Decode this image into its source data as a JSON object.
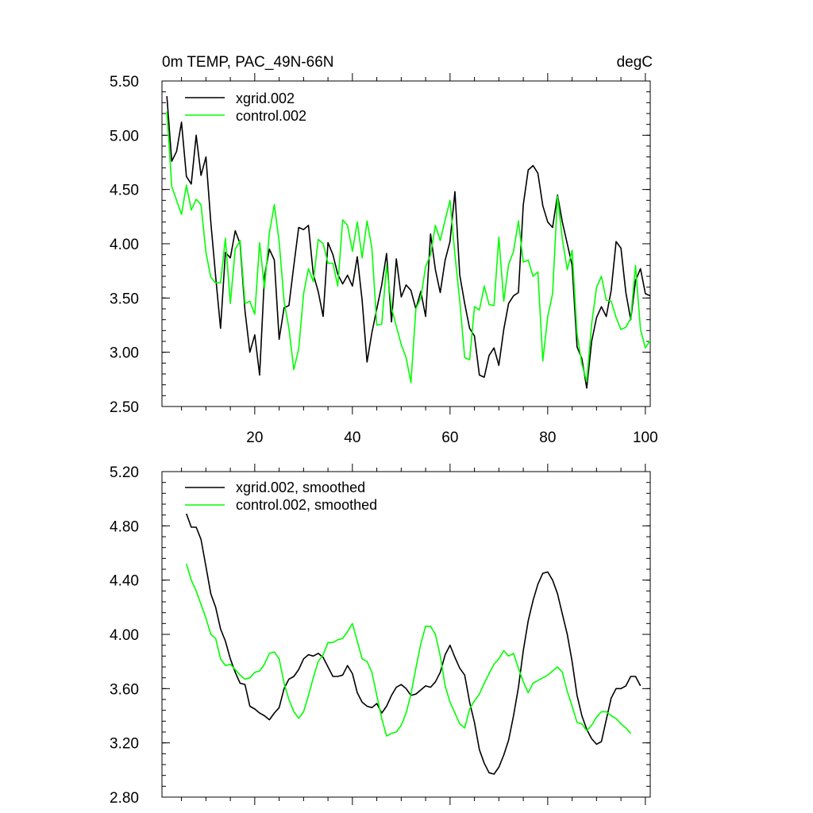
{
  "colors": {
    "xgrid": "#000000",
    "control": "#00ff00",
    "axis": "#000000",
    "background": "#ffffff"
  },
  "chart_data": [
    {
      "type": "line",
      "title": "0m TEMP, PAC_49N-66N",
      "units": "degC",
      "xlabel": "",
      "ylabel": "",
      "xlim": [
        1,
        101
      ],
      "ylim": [
        2.5,
        5.5
      ],
      "xticks": [
        20,
        40,
        60,
        80,
        100
      ],
      "xtick_labels": [
        "20",
        "40",
        "60",
        "80",
        "100"
      ],
      "yticks": [
        2.5,
        3.0,
        3.5,
        4.0,
        4.5,
        5.0,
        5.5
      ],
      "ytick_labels": [
        "2.50",
        "3.00",
        "3.50",
        "4.00",
        "4.50",
        "5.00",
        "5.50"
      ],
      "grid": false,
      "legend": "top-left",
      "x_start": 2,
      "series": [
        {
          "name": "xgrid.002",
          "color": "#000000",
          "values": [
            5.36,
            4.76,
            4.85,
            5.12,
            4.62,
            4.55,
            5.0,
            4.63,
            4.8,
            4.2,
            3.7,
            3.22,
            3.92,
            3.87,
            4.12,
            4.0,
            3.38,
            3.0,
            3.16,
            2.79,
            3.7,
            3.95,
            3.85,
            3.12,
            3.41,
            3.43,
            3.8,
            4.15,
            4.13,
            4.17,
            3.72,
            3.56,
            3.33,
            4.01,
            3.9,
            3.72,
            3.63,
            3.71,
            3.61,
            3.88,
            3.48,
            2.91,
            3.18,
            3.4,
            3.62,
            3.91,
            3.28,
            3.86,
            3.51,
            3.62,
            3.57,
            3.4,
            3.56,
            3.33,
            4.09,
            3.76,
            3.55,
            3.85,
            4.02,
            4.48,
            3.71,
            3.45,
            3.22,
            3.15,
            2.79,
            2.77,
            2.97,
            3.04,
            2.88,
            3.21,
            3.45,
            3.52,
            3.55,
            4.36,
            4.68,
            4.72,
            4.65,
            4.35,
            4.2,
            4.15,
            4.45,
            4.2,
            4.0,
            3.8,
            3.05,
            2.94,
            2.67,
            3.1,
            3.32,
            3.42,
            3.33,
            3.57,
            4.02,
            3.96,
            3.55,
            3.3,
            3.66,
            3.77,
            3.54,
            3.52
          ]
        },
        {
          "name": "control.002",
          "color": "#00ff00",
          "values": [
            5.22,
            4.53,
            4.4,
            4.27,
            4.54,
            4.31,
            4.41,
            4.36,
            3.92,
            3.69,
            3.64,
            3.64,
            4.05,
            3.45,
            3.95,
            4.03,
            3.45,
            3.47,
            3.35,
            4.01,
            3.59,
            4.1,
            4.36,
            4.02,
            3.47,
            3.22,
            2.84,
            3.03,
            3.54,
            3.77,
            3.65,
            4.04,
            4.0,
            3.82,
            3.82,
            3.61,
            4.22,
            4.17,
            3.93,
            4.2,
            3.87,
            4.21,
            3.96,
            3.25,
            3.26,
            3.8,
            3.41,
            3.24,
            3.07,
            2.95,
            2.72,
            3.4,
            3.5,
            3.79,
            3.9,
            4.17,
            4.03,
            4.22,
            4.4,
            3.9,
            3.47,
            2.95,
            2.93,
            3.42,
            3.39,
            3.61,
            3.44,
            3.43,
            4.06,
            3.47,
            3.81,
            3.93,
            4.21,
            3.83,
            3.85,
            3.7,
            3.74,
            2.92,
            3.33,
            3.54,
            4.44,
            4.04,
            3.76,
            3.94,
            3.17,
            2.89,
            2.73,
            3.26,
            3.6,
            3.7,
            3.48,
            3.47,
            3.32,
            3.21,
            3.23,
            3.31,
            3.8,
            3.21,
            3.04,
            3.11
          ]
        }
      ]
    },
    {
      "type": "line",
      "title": "",
      "xlabel": "",
      "ylabel": "",
      "xlim": [
        1,
        101
      ],
      "ylim": [
        2.8,
        5.2
      ],
      "xticks": [
        20,
        40,
        60,
        80,
        100
      ],
      "yticks": [
        2.8,
        3.2,
        3.6,
        4.0,
        4.4,
        4.8,
        5.2
      ],
      "ytick_labels": [
        "2.80",
        "3.20",
        "3.60",
        "4.00",
        "4.40",
        "4.80",
        "5.20"
      ],
      "grid": false,
      "legend": "top-left",
      "x_start": 6,
      "series": [
        {
          "name": "xgrid.002, smoothed",
          "color": "#000000",
          "values": [
            4.89,
            4.79,
            4.79,
            4.7,
            4.5,
            4.3,
            4.2,
            4.04,
            3.95,
            3.82,
            3.72,
            3.64,
            3.63,
            3.47,
            3.45,
            3.42,
            3.4,
            3.37,
            3.42,
            3.46,
            3.6,
            3.67,
            3.69,
            3.74,
            3.82,
            3.85,
            3.84,
            3.86,
            3.83,
            3.76,
            3.69,
            3.69,
            3.7,
            3.77,
            3.71,
            3.57,
            3.5,
            3.47,
            3.46,
            3.49,
            3.42,
            3.47,
            3.55,
            3.61,
            3.63,
            3.6,
            3.55,
            3.56,
            3.59,
            3.62,
            3.61,
            3.65,
            3.72,
            3.85,
            3.92,
            3.83,
            3.75,
            3.7,
            3.5,
            3.35,
            3.15,
            3.05,
            2.98,
            2.97,
            3.02,
            3.11,
            3.22,
            3.4,
            3.61,
            3.88,
            4.1,
            4.25,
            4.37,
            4.45,
            4.46,
            4.4,
            4.3,
            4.15,
            4.0,
            3.8,
            3.55,
            3.4,
            3.3,
            3.23,
            3.19,
            3.21,
            3.37,
            3.53,
            3.6,
            3.6,
            3.62,
            3.69,
            3.69,
            3.62
          ]
        },
        {
          "name": "control.002, smoothed",
          "color": "#00ff00",
          "values": [
            4.52,
            4.4,
            4.32,
            4.22,
            4.12,
            4.0,
            3.97,
            3.82,
            3.77,
            3.78,
            3.74,
            3.7,
            3.67,
            3.68,
            3.72,
            3.73,
            3.78,
            3.86,
            3.87,
            3.82,
            3.64,
            3.52,
            3.43,
            3.38,
            3.43,
            3.55,
            3.68,
            3.8,
            3.85,
            3.94,
            3.94,
            3.96,
            3.97,
            4.02,
            4.08,
            3.95,
            3.82,
            3.8,
            3.72,
            3.55,
            3.38,
            3.25,
            3.27,
            3.28,
            3.33,
            3.42,
            3.56,
            3.75,
            3.93,
            4.06,
            4.06,
            4.0,
            3.84,
            3.62,
            3.5,
            3.42,
            3.34,
            3.31,
            3.45,
            3.51,
            3.56,
            3.64,
            3.71,
            3.78,
            3.82,
            3.88,
            3.84,
            3.86,
            3.75,
            3.65,
            3.57,
            3.64,
            3.66,
            3.68,
            3.7,
            3.73,
            3.76,
            3.72,
            3.58,
            3.47,
            3.35,
            3.34,
            3.29,
            3.33,
            3.39,
            3.43,
            3.43,
            3.4,
            3.38,
            3.34,
            3.31,
            3.27
          ]
        }
      ]
    }
  ]
}
